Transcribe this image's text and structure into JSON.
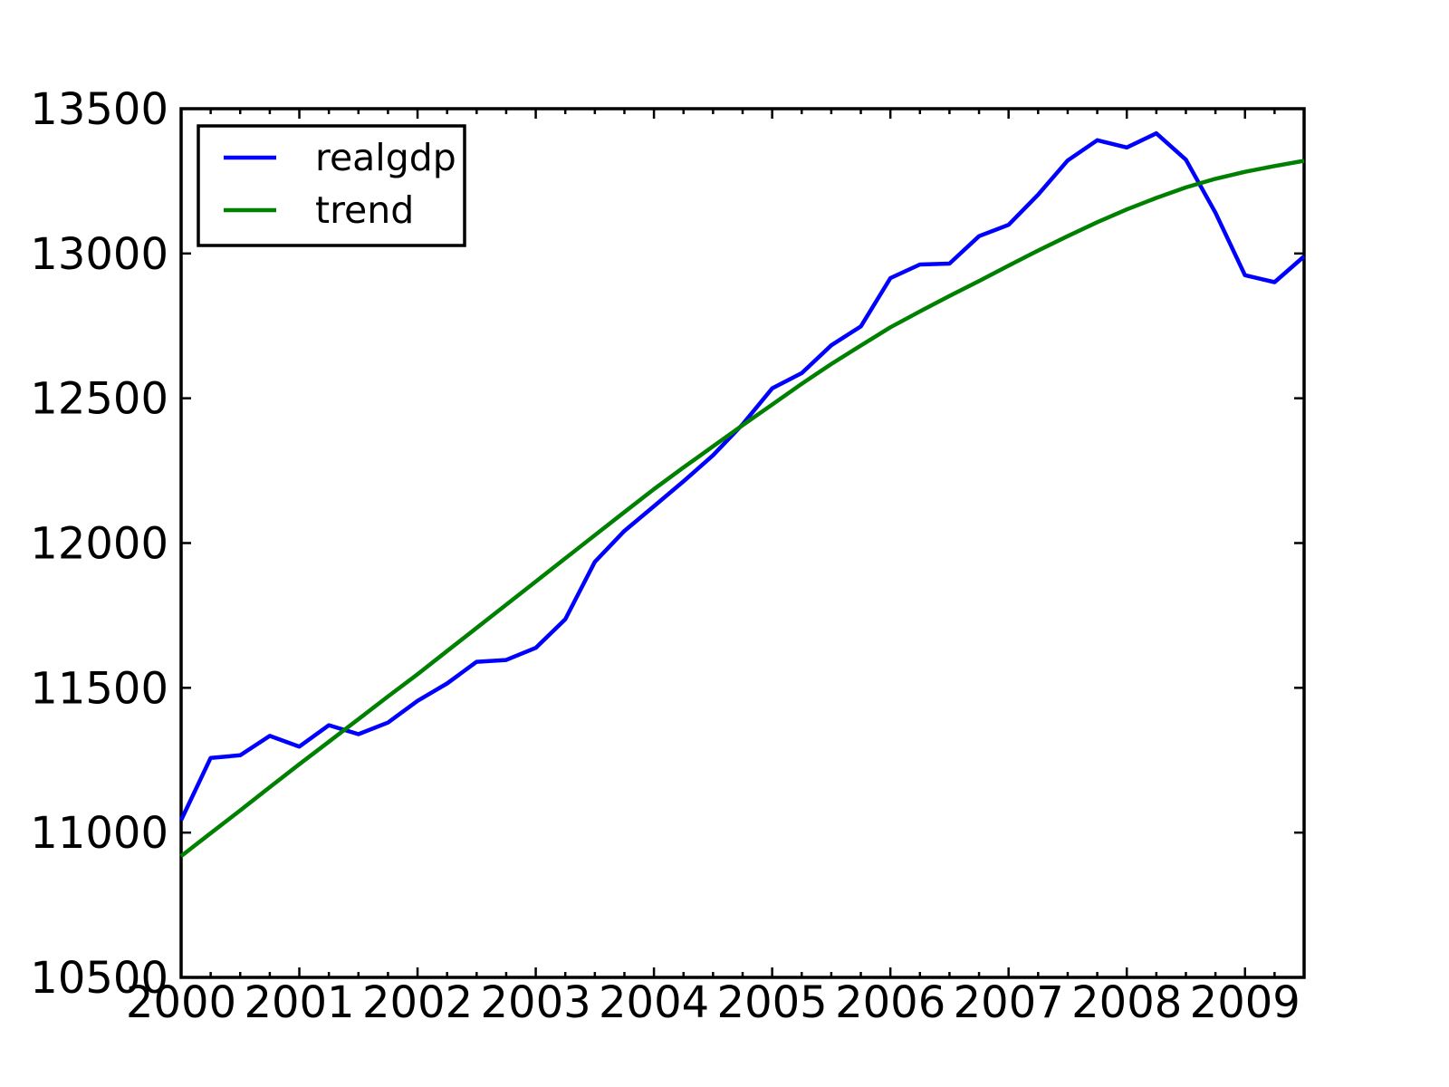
{
  "figure": {
    "background_color": "#ffffff",
    "title": ""
  },
  "legend": {
    "position": "upper-left",
    "border_color": "#000000",
    "entries": [
      {
        "label": "realgdp",
        "color": "#0000ff"
      },
      {
        "label": "trend",
        "color": "#008000"
      }
    ]
  },
  "chart_data": {
    "type": "line",
    "title": "",
    "xlabel": "",
    "ylabel": "",
    "grid": false,
    "legend_position": "upper-left",
    "xlim": [
      2000.0,
      2009.5
    ],
    "ylim": [
      10500,
      13500
    ],
    "x_ticks": [
      2000,
      2001,
      2002,
      2003,
      2004,
      2005,
      2006,
      2007,
      2008,
      2009
    ],
    "x_tick_labels": [
      "2000",
      "2001",
      "2002",
      "2003",
      "2004",
      "2005",
      "2006",
      "2007",
      "2008",
      "2009"
    ],
    "x_minor_tick_step": 0.25,
    "y_ticks": [
      10500,
      11000,
      11500,
      12000,
      12500,
      13000,
      13500
    ],
    "y_tick_labels": [
      "10500",
      "11000",
      "11500",
      "12000",
      "12500",
      "13000",
      "13500"
    ],
    "x_start": 2000.0,
    "x_step": 0.25,
    "x_unit": "year (quarterly data)",
    "series": [
      {
        "name": "realgdp",
        "color": "#0000ff",
        "values": [
          11043,
          11258,
          11267,
          11334,
          11297,
          11371,
          11340,
          11380,
          11455,
          11515,
          11590,
          11596,
          11638,
          11737,
          11935,
          12042,
          12127,
          12213,
          12303,
          12410,
          12534,
          12587,
          12683,
          12748,
          12915,
          12962,
          12965,
          13060,
          13099,
          13203,
          13321,
          13391,
          13366,
          13415,
          13324,
          13141,
          12925,
          12901,
          12990
        ]
      },
      {
        "name": "trend",
        "color": "#008000",
        "values": [
          10919,
          10998,
          11077,
          11157,
          11236,
          11314,
          11392,
          11470,
          11547,
          11627,
          11707,
          11787,
          11867,
          11947,
          12027,
          12107,
          12186,
          12261,
          12334,
          12407,
          12478,
          12550,
          12618,
          12682,
          12745,
          12800,
          12853,
          12905,
          12958,
          13010,
          13060,
          13108,
          13152,
          13192,
          13228,
          13258,
          13282,
          13302,
          13320
        ]
      }
    ]
  }
}
